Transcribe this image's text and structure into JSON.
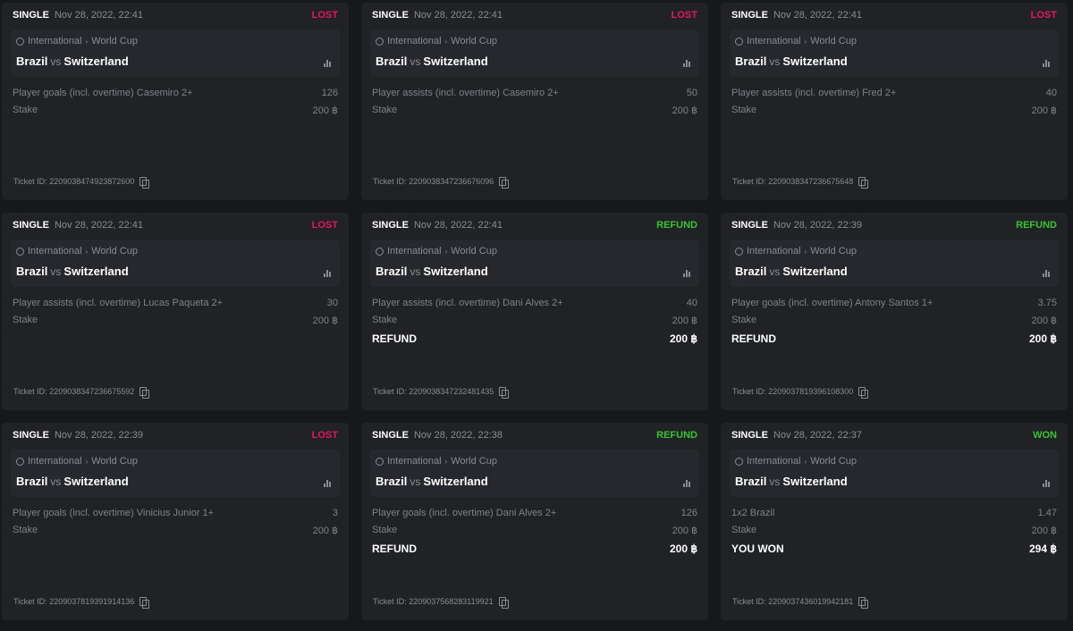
{
  "colors": {
    "lost": "#e5175f",
    "refund": "#37c531",
    "won": "#37c531"
  },
  "labels": {
    "vs": "vs",
    "stake": "Stake",
    "ticket_prefix": "Ticket ID:"
  },
  "tickets": [
    {
      "type": "SINGLE",
      "date": "Nov 28, 2022, 22:41",
      "status": "LOST",
      "status_kind": "lost",
      "league": "International",
      "tournament": "World Cup",
      "home": "Brazil",
      "away": "Switzerland",
      "selection": "Player goals (incl. overtime) Casemiro 2+",
      "odds": "126",
      "stake": "200 ฿",
      "result_label": "",
      "result_value": "",
      "ticket_id": "2209038474923872600"
    },
    {
      "type": "SINGLE",
      "date": "Nov 28, 2022, 22:41",
      "status": "LOST",
      "status_kind": "lost",
      "league": "International",
      "tournament": "World Cup",
      "home": "Brazil",
      "away": "Switzerland",
      "selection": "Player assists (incl. overtime) Casemiro 2+",
      "odds": "50",
      "stake": "200 ฿",
      "result_label": "",
      "result_value": "",
      "ticket_id": "2209038347236676096"
    },
    {
      "type": "SINGLE",
      "date": "Nov 28, 2022, 22:41",
      "status": "LOST",
      "status_kind": "lost",
      "league": "International",
      "tournament": "World Cup",
      "home": "Brazil",
      "away": "Switzerland",
      "selection": "Player assists (incl. overtime) Fred 2+",
      "odds": "40",
      "stake": "200 ฿",
      "result_label": "",
      "result_value": "",
      "ticket_id": "2209038347236675648"
    },
    {
      "type": "SINGLE",
      "date": "Nov 28, 2022, 22:41",
      "status": "LOST",
      "status_kind": "lost",
      "league": "International",
      "tournament": "World Cup",
      "home": "Brazil",
      "away": "Switzerland",
      "selection": "Player assists (incl. overtime) Lucas Paqueta 2+",
      "odds": "30",
      "stake": "200 ฿",
      "result_label": "",
      "result_value": "",
      "ticket_id": "2209038347236675592"
    },
    {
      "type": "SINGLE",
      "date": "Nov 28, 2022, 22:41",
      "status": "REFUND",
      "status_kind": "refund",
      "league": "International",
      "tournament": "World Cup",
      "home": "Brazil",
      "away": "Switzerland",
      "selection": "Player assists (incl. overtime) Dani Alves 2+",
      "odds": "40",
      "stake": "200 ฿",
      "result_label": "REFUND",
      "result_value": "200 ฿",
      "ticket_id": "2209038347232481435"
    },
    {
      "type": "SINGLE",
      "date": "Nov 28, 2022, 22:39",
      "status": "REFUND",
      "status_kind": "refund",
      "league": "International",
      "tournament": "World Cup",
      "home": "Brazil",
      "away": "Switzerland",
      "selection": "Player goals (incl. overtime) Antony Santos 1+",
      "odds": "3.75",
      "stake": "200 ฿",
      "result_label": "REFUND",
      "result_value": "200 ฿",
      "ticket_id": "2209037819396108300"
    },
    {
      "type": "SINGLE",
      "date": "Nov 28, 2022, 22:39",
      "status": "LOST",
      "status_kind": "lost",
      "league": "International",
      "tournament": "World Cup",
      "home": "Brazil",
      "away": "Switzerland",
      "selection": "Player goals (incl. overtime) Vinicius Junior 1+",
      "odds": "3",
      "stake": "200 ฿",
      "result_label": "",
      "result_value": "",
      "ticket_id": "2209037819391914136"
    },
    {
      "type": "SINGLE",
      "date": "Nov 28, 2022, 22:38",
      "status": "REFUND",
      "status_kind": "refund",
      "league": "International",
      "tournament": "World Cup",
      "home": "Brazil",
      "away": "Switzerland",
      "selection": "Player goals (incl. overtime) Dani Alves 2+",
      "odds": "126",
      "stake": "200 ฿",
      "result_label": "REFUND",
      "result_value": "200 ฿",
      "ticket_id": "2209037568283119921"
    },
    {
      "type": "SINGLE",
      "date": "Nov 28, 2022, 22:37",
      "status": "WON",
      "status_kind": "won",
      "league": "International",
      "tournament": "World Cup",
      "home": "Brazil",
      "away": "Switzerland",
      "selection": "1x2 Brazil",
      "odds": "1.47",
      "stake": "200 ฿",
      "result_label": "YOU WON",
      "result_value": "294 ฿",
      "ticket_id": "2209037436019942181"
    }
  ]
}
